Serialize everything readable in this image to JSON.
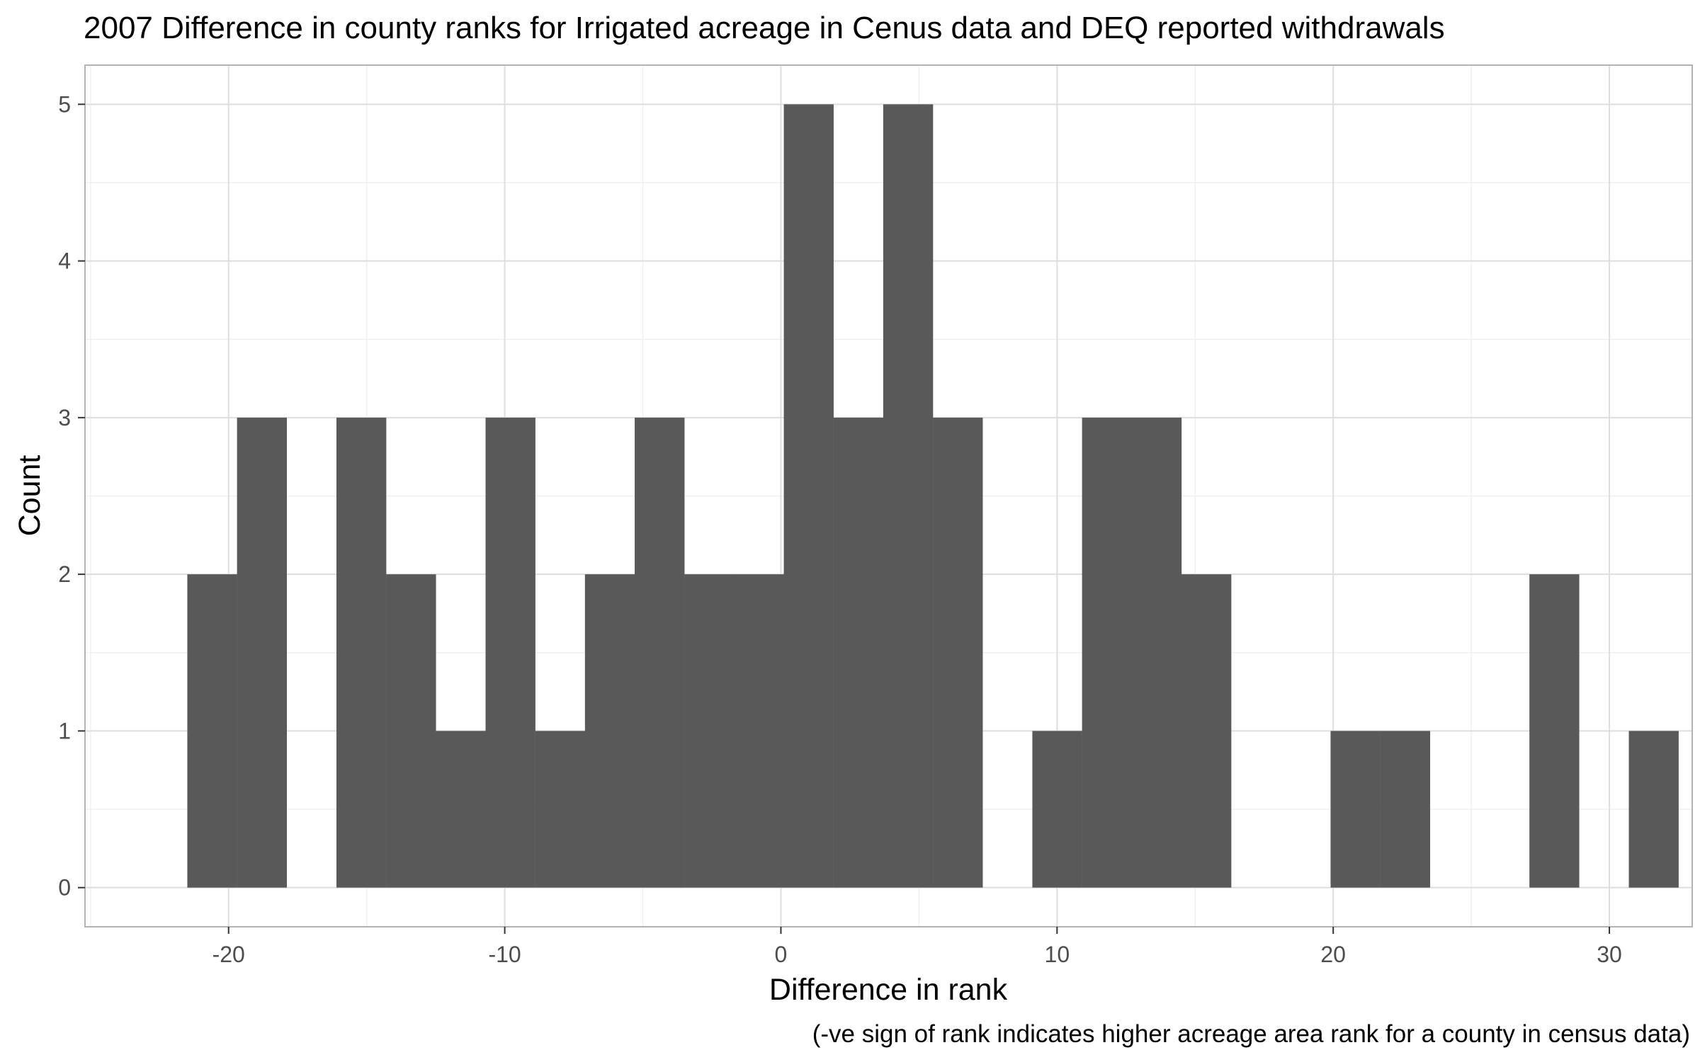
{
  "chart_data": {
    "type": "bar",
    "subtype": "histogram",
    "title": "2007 Difference in county ranks for Irrigated acreage in Cenus data and DEQ reported withdrawals",
    "xlabel": "Difference in rank",
    "ylabel": "Count",
    "caption": "(-ve sign of rank indicates higher acreage area rank for a county in census data)",
    "xlim": [
      -25.2,
      33.0
    ],
    "ylim": [
      -0.25,
      5.25
    ],
    "x_ticks": [
      -20,
      -10,
      0,
      10,
      20,
      30
    ],
    "x_tick_labels": [
      "-20",
      "-10",
      "0",
      "10",
      "20",
      "30"
    ],
    "y_ticks": [
      0,
      1,
      2,
      3,
      4,
      5
    ],
    "y_tick_labels": [
      "0",
      "1",
      "2",
      "3",
      "4",
      "5"
    ],
    "grid": true,
    "bar_color": "#595959",
    "bin_width": 1.79,
    "bins": [
      {
        "x": -20.6,
        "count": 2
      },
      {
        "x": -18.8,
        "count": 3
      },
      {
        "x": -17.0,
        "count": 0
      },
      {
        "x": -15.2,
        "count": 3
      },
      {
        "x": -13.4,
        "count": 2
      },
      {
        "x": -11.6,
        "count": 1
      },
      {
        "x": -9.8,
        "count": 3
      },
      {
        "x": -8.0,
        "count": 1
      },
      {
        "x": -6.2,
        "count": 2
      },
      {
        "x": -4.4,
        "count": 3
      },
      {
        "x": -2.6,
        "count": 2
      },
      {
        "x": -0.8,
        "count": 2
      },
      {
        "x": 1.0,
        "count": 5
      },
      {
        "x": 2.8,
        "count": 3
      },
      {
        "x": 4.6,
        "count": 5
      },
      {
        "x": 6.4,
        "count": 3
      },
      {
        "x": 8.2,
        "count": 0
      },
      {
        "x": 10.0,
        "count": 1
      },
      {
        "x": 11.8,
        "count": 3
      },
      {
        "x": 13.6,
        "count": 3
      },
      {
        "x": 15.4,
        "count": 2
      },
      {
        "x": 17.2,
        "count": 0
      },
      {
        "x": 19.0,
        "count": 0
      },
      {
        "x": 20.8,
        "count": 1
      },
      {
        "x": 22.6,
        "count": 1
      },
      {
        "x": 24.4,
        "count": 0
      },
      {
        "x": 26.2,
        "count": 0
      },
      {
        "x": 28.0,
        "count": 2
      },
      {
        "x": 29.8,
        "count": 0
      },
      {
        "x": 31.6,
        "count": 1
      }
    ]
  }
}
